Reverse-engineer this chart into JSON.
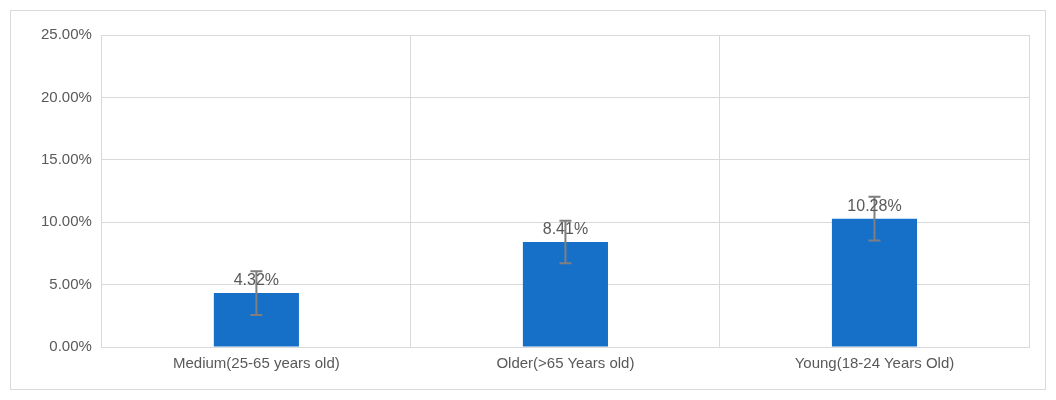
{
  "chart_data": {
    "type": "bar",
    "categories": [
      "Medium(25-65 years old)",
      "Older(>65 Years old)",
      "Young(18-24 Years Old)"
    ],
    "values": [
      4.32,
      8.41,
      10.28
    ],
    "color": "#1770c8",
    "errors": [
      1.75,
      1.7,
      1.75
    ],
    "value_labels": [
      "4.32%",
      "8.41%",
      "10.28%"
    ],
    "ylim": [
      0,
      25
    ],
    "yticks": [
      {
        "value": 0,
        "label": "0.00%"
      },
      {
        "value": 5,
        "label": "5.00%"
      },
      {
        "value": 10,
        "label": "10.00%"
      },
      {
        "value": 15,
        "label": "15.00%"
      },
      {
        "value": 20,
        "label": "20.00%"
      },
      {
        "value": 25,
        "label": "25.00%"
      }
    ],
    "grid": true,
    "legend": false
  }
}
